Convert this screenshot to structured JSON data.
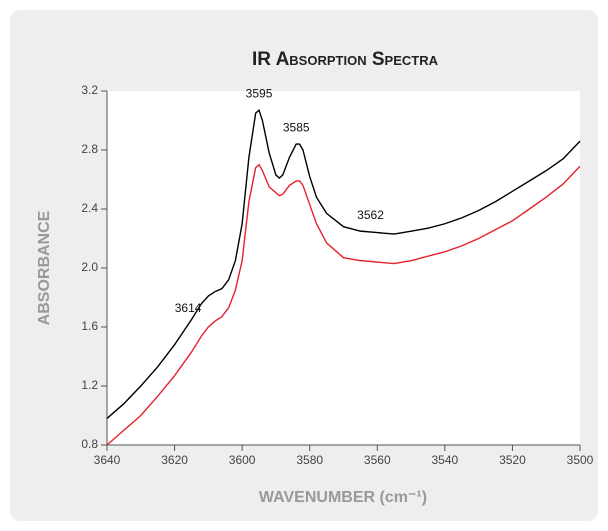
{
  "chart_data": {
    "type": "line",
    "title": "IR Absorption Spectra",
    "xlabel": "WAVENUMBER (cm⁻¹)",
    "ylabel": "ABSORBANCE",
    "x": [
      3640,
      3635,
      3630,
      3625,
      3620,
      3615,
      3612,
      3610,
      3608,
      3606,
      3604,
      3602,
      3600,
      3598,
      3596,
      3595,
      3594,
      3592,
      3590,
      3589,
      3588,
      3586,
      3584,
      3583,
      3582,
      3580,
      3578,
      3575,
      3570,
      3565,
      3560,
      3555,
      3550,
      3545,
      3540,
      3535,
      3530,
      3525,
      3520,
      3515,
      3510,
      3505,
      3500
    ],
    "series": [
      {
        "color": "#000000",
        "values": [
          0.98,
          1.08,
          1.2,
          1.33,
          1.48,
          1.65,
          1.76,
          1.81,
          1.84,
          1.86,
          1.92,
          2.05,
          2.3,
          2.75,
          3.05,
          3.07,
          3.0,
          2.78,
          2.63,
          2.61,
          2.63,
          2.75,
          2.84,
          2.84,
          2.8,
          2.62,
          2.48,
          2.37,
          2.28,
          2.25,
          2.24,
          2.23,
          2.25,
          2.27,
          2.3,
          2.34,
          2.39,
          2.45,
          2.52,
          2.59,
          2.66,
          2.74,
          2.86
        ]
      },
      {
        "color": "#e8202a",
        "values": [
          0.8,
          0.9,
          1.0,
          1.13,
          1.27,
          1.43,
          1.54,
          1.6,
          1.64,
          1.67,
          1.73,
          1.85,
          2.05,
          2.45,
          2.68,
          2.7,
          2.66,
          2.55,
          2.51,
          2.49,
          2.5,
          2.56,
          2.59,
          2.59,
          2.56,
          2.43,
          2.3,
          2.17,
          2.07,
          2.05,
          2.04,
          2.03,
          2.05,
          2.08,
          2.11,
          2.15,
          2.2,
          2.26,
          2.32,
          2.4,
          2.48,
          2.57,
          2.69
        ]
      }
    ],
    "annotations": [
      {
        "text": "3614",
        "x": 3616
      },
      {
        "text": "3595",
        "x": 3595
      },
      {
        "text": "3585",
        "x": 3584
      },
      {
        "text": "3562",
        "x": 3562
      }
    ],
    "xlim": [
      3640,
      3500
    ],
    "xticks": [
      3640,
      3620,
      3600,
      3580,
      3560,
      3540,
      3520,
      3500
    ],
    "ylim": [
      0.8,
      3.2
    ],
    "yticks": [
      0.8,
      1.2,
      1.6,
      {
        "value": 2.0,
        "label": "2.0"
      },
      2.4,
      2.8,
      3.2
    ]
  }
}
